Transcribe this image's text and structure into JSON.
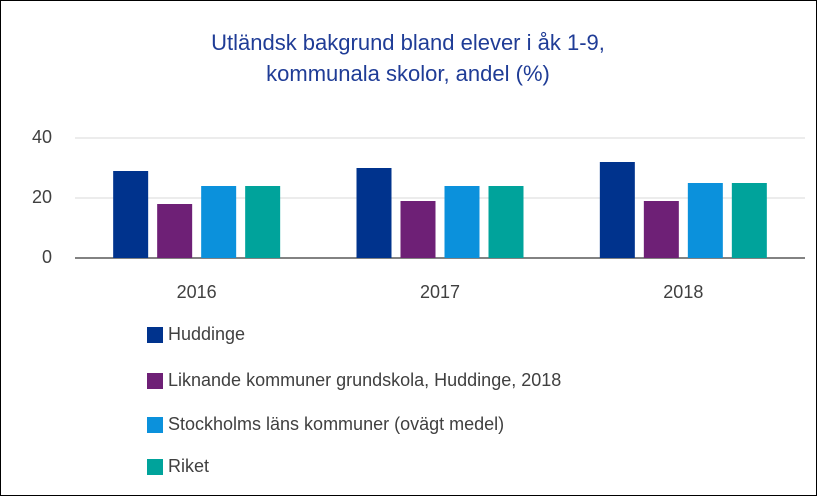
{
  "chart_data": {
    "type": "bar",
    "title": [
      "Utländsk bakgrund bland elever i åk 1-9,",
      "kommunala skolor, andel (%)"
    ],
    "categories": [
      "2016",
      "2017",
      "2018"
    ],
    "series": [
      {
        "name": "Huddinge",
        "color": "#00338d",
        "values": [
          29,
          30,
          32
        ]
      },
      {
        "name": "Liknande kommuner grundskola, Huddinge, 2018",
        "color": "#6e2076",
        "values": [
          18,
          19,
          19
        ]
      },
      {
        "name": "Stockholms läns kommuner (ovägt medel)",
        "color": "#0b91dc",
        "values": [
          24,
          24,
          25
        ]
      },
      {
        "name": "Riket",
        "color": "#00a39b",
        "values": [
          24,
          24,
          25
        ]
      }
    ],
    "ylim": [
      0,
      40
    ],
    "yticks": [
      0,
      20,
      40
    ],
    "grid": true
  }
}
